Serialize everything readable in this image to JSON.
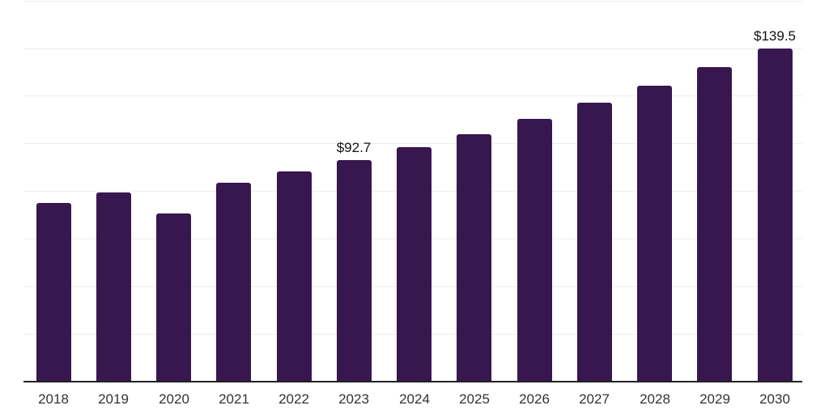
{
  "chart_data": {
    "type": "bar",
    "title": "",
    "xlabel": "",
    "ylabel": "",
    "categories": [
      "2018",
      "2019",
      "2020",
      "2021",
      "2022",
      "2023",
      "2024",
      "2025",
      "2026",
      "2027",
      "2028",
      "2029",
      "2030"
    ],
    "values": [
      74.7,
      79.1,
      70.3,
      83.2,
      87.9,
      92.7,
      98.1,
      103.5,
      110.0,
      116.8,
      123.9,
      131.6,
      139.5
    ],
    "labels": {
      "2023": "$92.7",
      "2030": "$139.5"
    },
    "ylim": [
      0,
      160
    ],
    "gridline_step": 20,
    "grid": "horizontal-light",
    "legend": "none",
    "colors": {
      "bar": "#38164e",
      "axis": "#222222",
      "gridline": "#ededed",
      "tick_label": "#333333",
      "value_label": "#111111"
    }
  }
}
